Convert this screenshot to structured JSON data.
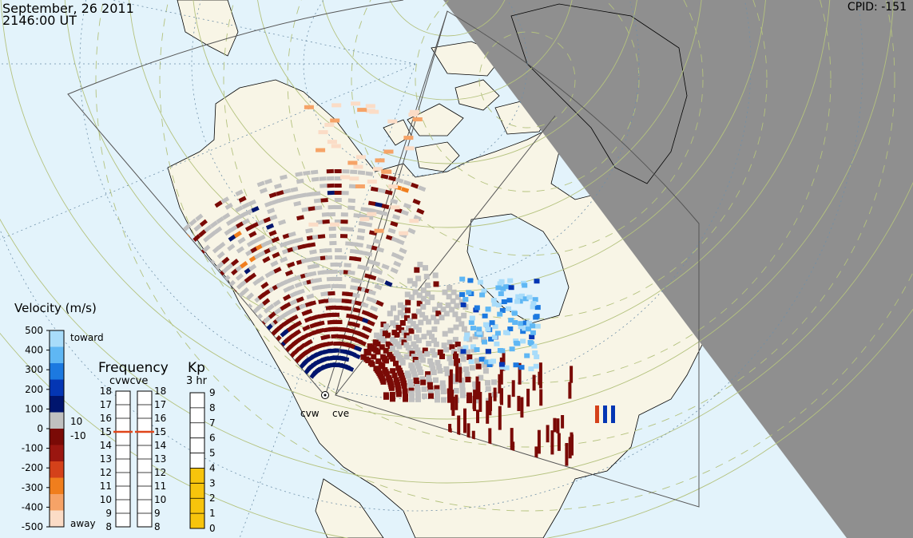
{
  "header": {
    "date": "September, 26 2011",
    "time": "2146:00 UT",
    "cpid": "CPID:  -151"
  },
  "radars": [
    {
      "code": "cvw"
    },
    {
      "code": "cve"
    }
  ],
  "velocity_scale": {
    "title": "Velocity (m/s)",
    "ticks": [
      "500",
      "400",
      "300",
      "200",
      "100",
      "0",
      "-100",
      "-200",
      "-300",
      "-400",
      "-500"
    ],
    "toward_label": "toward",
    "away_label": "away",
    "ground_upper": "10",
    "ground_lower": "-10",
    "colors": [
      "#fbdcc6",
      "#f6a367",
      "#f07e1d",
      "#d4411a",
      "#9a1610",
      "#7a0a06",
      "#c0c0c0",
      "#00156e",
      "#0436b4",
      "#1c79e0",
      "#5fb7f4",
      "#a8dcfa"
    ]
  },
  "frequency_panel": {
    "title": "Frequency",
    "subtitle": "cvwcve",
    "ticks": [
      "18",
      "17",
      "16",
      "15",
      "14",
      "13",
      "12",
      "11",
      "10",
      "9",
      "8"
    ],
    "cvw_mhz": 15,
    "cve_mhz": 15
  },
  "kp_panel": {
    "title": "Kp",
    "subtitle": "3 hr",
    "ticks": [
      "9",
      "8",
      "7",
      "6",
      "5",
      "4",
      "3",
      "2",
      "1",
      "0"
    ],
    "value": 4,
    "fill_color": "#f7c40c"
  },
  "map_colors": {
    "ocean": "#e3f3fb",
    "land": "#f8f5e6",
    "night": "#8f8f8f",
    "grid": "#b4c27e"
  }
}
